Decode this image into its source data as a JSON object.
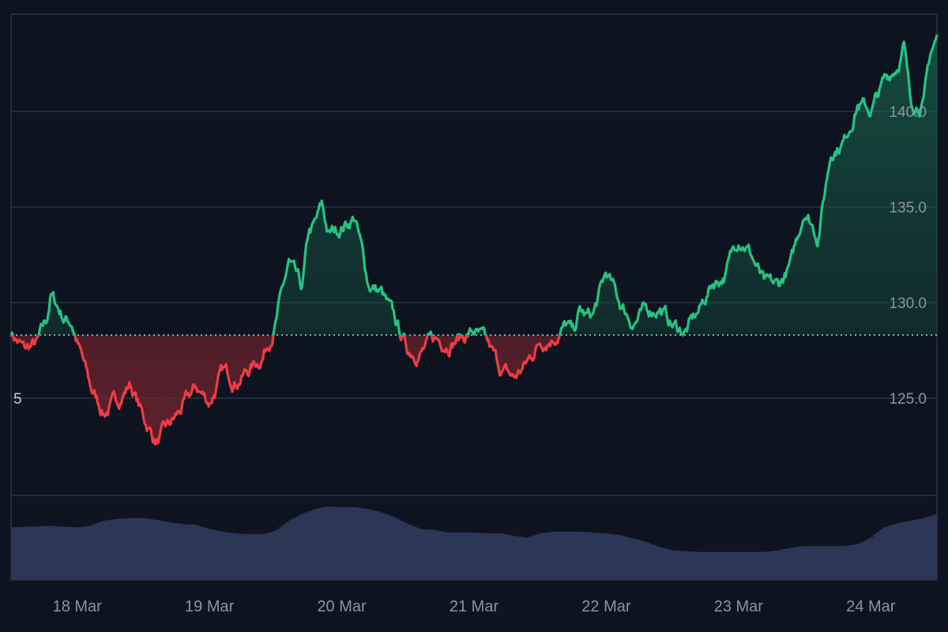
{
  "chart_data": {
    "type": "area",
    "baseline": 128.3,
    "ylim": [
      121,
      145
    ],
    "y_ticks": [
      {
        "value": 140,
        "label": "140.0"
      },
      {
        "value": 135,
        "label": "135.0"
      },
      {
        "value": 130,
        "label": "130.0"
      },
      {
        "value": 125,
        "label": "125.0"
      }
    ],
    "left_tick": {
      "value": 125,
      "label": "5"
    },
    "x_ticks": [
      {
        "x": 0.5,
        "label": "18 Mar"
      },
      {
        "x": 1.5,
        "label": "19 Mar"
      },
      {
        "x": 2.5,
        "label": "20 Mar"
      },
      {
        "x": 3.5,
        "label": "21 Mar"
      },
      {
        "x": 4.5,
        "label": "22 Mar"
      },
      {
        "x": 5.5,
        "label": "23 Mar"
      },
      {
        "x": 6.5,
        "label": "24 Mar"
      }
    ],
    "xlim": [
      0.0,
      7.0
    ],
    "price_series": {
      "x": [
        0.0,
        0.1,
        0.2,
        0.27,
        0.3,
        0.4,
        0.46,
        0.5,
        0.6,
        0.7,
        0.8,
        0.9,
        1.0,
        1.1,
        1.2,
        1.3,
        1.4,
        1.5,
        1.6,
        1.7,
        1.8,
        1.9,
        2.0,
        2.1,
        2.2,
        2.25,
        2.3,
        2.35,
        2.4,
        2.5,
        2.6,
        2.7,
        2.8,
        2.9,
        3.0,
        3.1,
        3.2,
        3.3,
        3.4,
        3.5,
        3.6,
        3.7,
        3.8,
        3.9,
        4.0,
        4.1,
        4.2,
        4.25,
        4.3,
        4.35,
        4.4,
        4.5,
        4.6,
        4.7,
        4.8,
        4.9,
        5.0,
        5.1,
        5.2,
        5.3,
        5.4,
        5.5,
        5.55,
        5.6,
        5.7,
        5.8,
        5.9,
        6.0,
        6.1,
        6.2,
        6.3,
        6.4,
        6.5,
        6.6,
        6.7,
        6.75,
        6.8,
        6.9,
        6.95,
        7.0
      ],
      "y": [
        128.5,
        127.5,
        127.8,
        129.0,
        130.4,
        129.2,
        129.0,
        128.0,
        125.5,
        124.3,
        124.8,
        125.8,
        124.0,
        122.7,
        123.5,
        124.5,
        125.5,
        124.8,
        126.3,
        126.0,
        126.5,
        127.2,
        129.0,
        132.0,
        130.5,
        133.5,
        134.0,
        135.0,
        133.5,
        134.0,
        134.5,
        131.0,
        130.5,
        129.0,
        127.5,
        127.5,
        128.0,
        128.0,
        128.2,
        128.5,
        127.7,
        126.5,
        126.0,
        126.8,
        128.0,
        128.3,
        128.8,
        128.3,
        129.5,
        129.2,
        129.3,
        131.5,
        130.0,
        129.0,
        129.5,
        129.8,
        128.8,
        128.5,
        129.5,
        131.0,
        131.5,
        133.5,
        133.2,
        132.5,
        130.8,
        130.8,
        132.0,
        135.0,
        133.5,
        138.0,
        138.5,
        140.5,
        140.0,
        141.5,
        142.5,
        143.5,
        140.5,
        140.5,
        143.0,
        143.8
      ]
    },
    "volume_series": {
      "x": [
        0.0,
        0.3,
        0.5,
        0.6,
        0.7,
        0.8,
        0.9,
        1.0,
        1.1,
        1.2,
        1.3,
        1.4,
        1.5,
        1.6,
        1.7,
        1.8,
        1.9,
        2.0,
        2.1,
        2.2,
        2.3,
        2.4,
        2.5,
        2.6,
        2.7,
        2.8,
        2.9,
        3.0,
        3.1,
        3.2,
        3.3,
        3.4,
        3.5,
        3.6,
        3.7,
        3.8,
        3.9,
        4.0,
        4.1,
        4.2,
        4.3,
        4.4,
        4.5,
        4.6,
        4.7,
        4.8,
        4.9,
        5.0,
        5.1,
        5.2,
        5.3,
        5.4,
        5.5,
        5.6,
        5.7,
        5.8,
        5.9,
        6.0,
        6.1,
        6.2,
        6.3,
        6.4,
        6.5,
        6.6,
        6.7,
        6.8,
        6.9,
        7.0
      ],
      "y": [
        0.62,
        0.64,
        0.62,
        0.64,
        0.7,
        0.72,
        0.73,
        0.73,
        0.71,
        0.68,
        0.66,
        0.65,
        0.6,
        0.57,
        0.55,
        0.54,
        0.54,
        0.58,
        0.7,
        0.78,
        0.84,
        0.87,
        0.86,
        0.86,
        0.84,
        0.8,
        0.74,
        0.66,
        0.6,
        0.59,
        0.56,
        0.56,
        0.56,
        0.55,
        0.55,
        0.52,
        0.5,
        0.55,
        0.57,
        0.57,
        0.57,
        0.56,
        0.55,
        0.53,
        0.49,
        0.45,
        0.39,
        0.35,
        0.34,
        0.33,
        0.33,
        0.33,
        0.33,
        0.33,
        0.33,
        0.35,
        0.38,
        0.4,
        0.4,
        0.4,
        0.4,
        0.42,
        0.5,
        0.62,
        0.67,
        0.7,
        0.73,
        0.78
      ]
    },
    "colors": {
      "up": "#26c281",
      "down": "#ef3b45",
      "volume": "#2c3656",
      "grid": "#2b3340",
      "background": "#0d1420",
      "tick_text": "#8b93a3",
      "baseline": "#c8ccd4"
    },
    "grid": true
  }
}
